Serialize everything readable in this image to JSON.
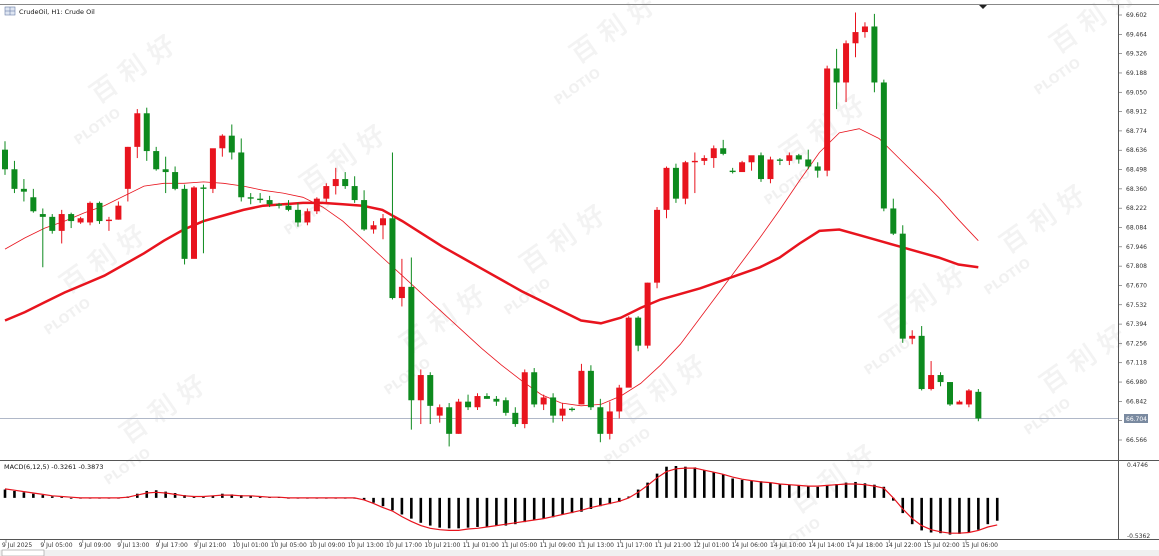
{
  "header": {
    "symbol_label": "CrudeOil, H1:  Crude Oil",
    "menu_icon": "grid-menu-icon"
  },
  "watermark": {
    "text": "百 利 好",
    "brand": "PLOTIO"
  },
  "colors": {
    "bull": "#e8141e",
    "bear": "#0d8a1e",
    "ma_fast": "#e8141e",
    "ma_slow": "#e8141e",
    "macd_hist": "#000000",
    "macd_signal": "#e8141e",
    "grid": "#c8c8c8",
    "price_line": "#b0b8c8",
    "price_tag": "#7a8aa0"
  },
  "price_axis": {
    "labels": [
      "69.602",
      "69.464",
      "69.326",
      "69.188",
      "69.050",
      "68.912",
      "68.774",
      "68.636",
      "68.498",
      "68.360",
      "68.222",
      "68.084",
      "67.946",
      "67.808",
      "67.670",
      "67.532",
      "67.394",
      "67.256",
      "67.118",
      "66.980",
      "66.842",
      "66.704",
      "66.566"
    ],
    "current_price": "66.704"
  },
  "macd": {
    "label": "MACD(6,12,5) -0.3261 -0.3873",
    "top_label": "0.4746",
    "bottom_label": "-0.5362"
  },
  "time_axis": {
    "labels": [
      "9 Jul 2025",
      "9 Jul 05:00",
      "9 Jul 09:00",
      "9 Jul 13:00",
      "9 Jul 17:00",
      "9 Jul 21:00",
      "10 Jul 01:00",
      "10 Jul 05:00",
      "10 Jul 09:00",
      "10 Jul 13:00",
      "10 Jul 17:00",
      "10 Jul 21:00",
      "11 Jul 01:00",
      "11 Jul 05:00",
      "11 Jul 09:00",
      "11 Jul 13:00",
      "11 Jul 17:00",
      "11 Jul 21:00",
      "12 Jul 01:00",
      "14 Jul 06:00",
      "14 Jul 10:00",
      "14 Jul 14:00",
      "14 Jul 18:00",
      "14 Jul 22:00",
      "15 Jul 02:00",
      "15 Jul 06:00"
    ]
  },
  "chart_data": {
    "type": "candlestick",
    "title": "CrudeOil, H1:  Crude Oil",
    "ylim": [
      66.5,
      69.65
    ],
    "candles": [
      {
        "o": 68.64,
        "h": 68.7,
        "l": 68.46,
        "c": 68.5
      },
      {
        "o": 68.5,
        "h": 68.56,
        "l": 68.33,
        "c": 68.36
      },
      {
        "o": 68.36,
        "h": 68.43,
        "l": 68.27,
        "c": 68.34
      },
      {
        "o": 68.3,
        "h": 68.36,
        "l": 68.19,
        "c": 68.2
      },
      {
        "o": 68.18,
        "h": 68.22,
        "l": 67.8,
        "c": 68.16
      },
      {
        "o": 68.16,
        "h": 68.18,
        "l": 68.04,
        "c": 68.06
      },
      {
        "o": 68.06,
        "h": 68.21,
        "l": 67.97,
        "c": 68.18
      },
      {
        "o": 68.18,
        "h": 68.19,
        "l": 68.08,
        "c": 68.13
      },
      {
        "o": 68.12,
        "h": 68.16,
        "l": 68.11,
        "c": 68.15
      },
      {
        "o": 68.12,
        "h": 68.27,
        "l": 68.1,
        "c": 68.26
      },
      {
        "o": 68.26,
        "h": 68.27,
        "l": 68.11,
        "c": 68.13
      },
      {
        "o": 68.13,
        "h": 68.16,
        "l": 68.06,
        "c": 68.14
      },
      {
        "o": 68.14,
        "h": 68.27,
        "l": 68.14,
        "c": 68.24
      },
      {
        "o": 68.36,
        "h": 68.66,
        "l": 68.27,
        "c": 68.66
      },
      {
        "o": 68.66,
        "h": 68.93,
        "l": 68.58,
        "c": 68.9
      },
      {
        "o": 68.9,
        "h": 68.94,
        "l": 68.56,
        "c": 68.63
      },
      {
        "o": 68.63,
        "h": 68.66,
        "l": 68.49,
        "c": 68.5
      },
      {
        "o": 68.5,
        "h": 68.59,
        "l": 68.33,
        "c": 68.48
      },
      {
        "o": 68.48,
        "h": 68.52,
        "l": 68.35,
        "c": 68.36
      },
      {
        "o": 68.36,
        "h": 68.39,
        "l": 67.82,
        "c": 67.86
      },
      {
        "o": 67.86,
        "h": 68.38,
        "l": 67.88,
        "c": 68.37
      },
      {
        "o": 68.37,
        "h": 68.39,
        "l": 67.9,
        "c": 68.36
      },
      {
        "o": 68.36,
        "h": 68.64,
        "l": 68.33,
        "c": 68.65
      },
      {
        "o": 68.65,
        "h": 68.75,
        "l": 68.59,
        "c": 68.74
      },
      {
        "o": 68.74,
        "h": 68.82,
        "l": 68.57,
        "c": 68.62
      },
      {
        "o": 68.62,
        "h": 68.72,
        "l": 68.27,
        "c": 68.3
      },
      {
        "o": 68.3,
        "h": 68.33,
        "l": 68.25,
        "c": 68.29
      },
      {
        "o": 68.29,
        "h": 68.33,
        "l": 68.26,
        "c": 68.28
      },
      {
        "o": 68.28,
        "h": 68.31,
        "l": 68.23,
        "c": 68.25
      },
      {
        "o": 68.25,
        "h": 68.26,
        "l": 68.22,
        "c": 68.24
      },
      {
        "o": 68.24,
        "h": 68.28,
        "l": 68.2,
        "c": 68.21
      },
      {
        "o": 68.21,
        "h": 68.26,
        "l": 68.09,
        "c": 68.12
      },
      {
        "o": 68.12,
        "h": 68.22,
        "l": 68.1,
        "c": 68.2
      },
      {
        "o": 68.2,
        "h": 68.3,
        "l": 68.18,
        "c": 68.29
      },
      {
        "o": 68.29,
        "h": 68.4,
        "l": 68.25,
        "c": 68.38
      },
      {
        "o": 68.38,
        "h": 68.51,
        "l": 68.32,
        "c": 68.43
      },
      {
        "o": 68.43,
        "h": 68.48,
        "l": 68.36,
        "c": 68.38
      },
      {
        "o": 68.38,
        "h": 68.45,
        "l": 68.26,
        "c": 68.28
      },
      {
        "o": 68.28,
        "h": 68.35,
        "l": 68.06,
        "c": 68.07
      },
      {
        "o": 68.07,
        "h": 68.13,
        "l": 68.04,
        "c": 68.1
      },
      {
        "o": 68.1,
        "h": 68.18,
        "l": 68.0,
        "c": 68.15
      },
      {
        "o": 68.15,
        "h": 68.62,
        "l": 67.57,
        "c": 67.58
      },
      {
        "o": 67.58,
        "h": 67.86,
        "l": 67.52,
        "c": 67.66
      },
      {
        "o": 67.66,
        "h": 67.87,
        "l": 66.64,
        "c": 66.85
      },
      {
        "o": 66.85,
        "h": 67.07,
        "l": 66.68,
        "c": 67.03
      },
      {
        "o": 67.03,
        "h": 67.05,
        "l": 66.68,
        "c": 66.81
      },
      {
        "o": 66.74,
        "h": 66.82,
        "l": 66.69,
        "c": 66.8
      },
      {
        "o": 66.8,
        "h": 66.83,
        "l": 66.52,
        "c": 66.61
      },
      {
        "o": 66.61,
        "h": 66.86,
        "l": 66.61,
        "c": 66.84
      },
      {
        "o": 66.84,
        "h": 66.89,
        "l": 66.78,
        "c": 66.8
      },
      {
        "o": 66.8,
        "h": 66.9,
        "l": 66.78,
        "c": 66.88
      },
      {
        "o": 66.88,
        "h": 66.9,
        "l": 66.86,
        "c": 66.86
      },
      {
        "o": 66.86,
        "h": 66.88,
        "l": 66.81,
        "c": 66.84
      },
      {
        "o": 66.85,
        "h": 66.87,
        "l": 66.74,
        "c": 66.76
      },
      {
        "o": 66.76,
        "h": 66.8,
        "l": 66.66,
        "c": 66.68
      },
      {
        "o": 66.68,
        "h": 67.07,
        "l": 66.65,
        "c": 67.05
      },
      {
        "o": 67.05,
        "h": 67.08,
        "l": 66.8,
        "c": 66.82
      },
      {
        "o": 66.82,
        "h": 66.89,
        "l": 66.78,
        "c": 66.87
      },
      {
        "o": 66.87,
        "h": 66.9,
        "l": 66.69,
        "c": 66.74
      },
      {
        "o": 66.74,
        "h": 66.83,
        "l": 66.7,
        "c": 66.79
      },
      {
        "o": 66.79,
        "h": 66.8,
        "l": 66.77,
        "c": 66.78
      },
      {
        "o": 66.82,
        "h": 67.11,
        "l": 66.82,
        "c": 67.06
      },
      {
        "o": 67.06,
        "h": 67.1,
        "l": 66.78,
        "c": 66.8
      },
      {
        "o": 66.8,
        "h": 66.86,
        "l": 66.55,
        "c": 66.61
      },
      {
        "o": 66.61,
        "h": 66.84,
        "l": 66.57,
        "c": 66.77
      },
      {
        "o": 66.77,
        "h": 66.96,
        "l": 66.72,
        "c": 66.94
      },
      {
        "o": 66.94,
        "h": 67.45,
        "l": 66.96,
        "c": 67.44
      },
      {
        "o": 67.44,
        "h": 67.45,
        "l": 67.2,
        "c": 67.24
      },
      {
        "o": 67.24,
        "h": 67.69,
        "l": 67.22,
        "c": 67.69
      },
      {
        "o": 67.69,
        "h": 68.23,
        "l": 67.65,
        "c": 68.21
      },
      {
        "o": 68.21,
        "h": 68.52,
        "l": 68.15,
        "c": 68.51
      },
      {
        "o": 68.51,
        "h": 68.54,
        "l": 68.26,
        "c": 68.29
      },
      {
        "o": 68.29,
        "h": 68.56,
        "l": 68.25,
        "c": 68.55
      },
      {
        "o": 68.55,
        "h": 68.62,
        "l": 68.33,
        "c": 68.56
      },
      {
        "o": 68.56,
        "h": 68.6,
        "l": 68.53,
        "c": 68.58
      },
      {
        "o": 68.58,
        "h": 68.67,
        "l": 68.51,
        "c": 68.65
      },
      {
        "o": 68.65,
        "h": 68.71,
        "l": 68.6,
        "c": 68.61
      },
      {
        "o": 68.49,
        "h": 68.51,
        "l": 68.47,
        "c": 68.48
      },
      {
        "o": 68.48,
        "h": 68.56,
        "l": 68.49,
        "c": 68.55
      },
      {
        "o": 68.55,
        "h": 68.57,
        "l": 68.49,
        "c": 68.6
      },
      {
        "o": 68.6,
        "h": 68.62,
        "l": 68.41,
        "c": 68.43
      },
      {
        "o": 68.43,
        "h": 68.59,
        "l": 68.4,
        "c": 68.57
      },
      {
        "o": 68.57,
        "h": 68.58,
        "l": 68.53,
        "c": 68.56
      },
      {
        "o": 68.56,
        "h": 68.62,
        "l": 68.53,
        "c": 68.6
      },
      {
        "o": 68.6,
        "h": 68.61,
        "l": 68.54,
        "c": 68.57
      },
      {
        "o": 68.57,
        "h": 68.64,
        "l": 68.5,
        "c": 68.52
      },
      {
        "o": 68.52,
        "h": 68.55,
        "l": 68.44,
        "c": 68.49
      },
      {
        "o": 68.49,
        "h": 69.24,
        "l": 68.45,
        "c": 69.22
      },
      {
        "o": 69.22,
        "h": 69.36,
        "l": 68.93,
        "c": 69.12
      },
      {
        "o": 69.12,
        "h": 69.42,
        "l": 68.98,
        "c": 69.4
      },
      {
        "o": 69.4,
        "h": 69.62,
        "l": 69.3,
        "c": 69.48
      },
      {
        "o": 69.48,
        "h": 69.55,
        "l": 69.44,
        "c": 69.52
      },
      {
        "o": 69.52,
        "h": 69.61,
        "l": 69.05,
        "c": 69.12
      },
      {
        "o": 69.12,
        "h": 69.14,
        "l": 68.2,
        "c": 68.22
      },
      {
        "o": 68.22,
        "h": 68.29,
        "l": 68.03,
        "c": 68.04
      },
      {
        "o": 68.04,
        "h": 68.1,
        "l": 67.26,
        "c": 67.29
      },
      {
        "o": 67.29,
        "h": 67.35,
        "l": 67.25,
        "c": 67.31
      },
      {
        "o": 67.31,
        "h": 67.38,
        "l": 66.92,
        "c": 66.93
      },
      {
        "o": 66.93,
        "h": 67.13,
        "l": 66.92,
        "c": 67.03
      },
      {
        "o": 67.03,
        "h": 67.05,
        "l": 66.95,
        "c": 66.98
      },
      {
        "o": 66.98,
        "h": 66.98,
        "l": 66.81,
        "c": 66.82
      },
      {
        "o": 66.82,
        "h": 66.85,
        "l": 66.82,
        "c": 66.84
      },
      {
        "o": 66.82,
        "h": 66.93,
        "l": 66.8,
        "c": 66.92
      },
      {
        "o": 66.91,
        "h": 66.93,
        "l": 66.7,
        "c": 66.72
      }
    ],
    "ma_fast": {
      "name": "",
      "y": [
        67.93,
        68.01,
        68.08,
        68.13,
        68.19,
        68.24,
        68.31,
        68.38,
        68.4,
        68.4,
        68.41,
        68.4,
        68.38,
        68.35,
        68.33,
        68.3,
        68.23,
        68.13,
        68.0,
        67.87,
        67.74,
        67.61,
        67.48,
        67.35,
        67.22,
        67.1,
        66.99,
        66.89,
        66.83,
        66.81,
        66.82,
        66.88,
        66.97,
        67.1,
        67.25,
        67.44,
        67.63,
        67.82,
        68.01,
        68.21,
        68.42,
        68.62,
        68.76,
        68.79,
        68.72,
        68.58,
        68.44,
        68.3,
        68.14,
        67.99
      ]
    },
    "ma_slow": {
      "name": "",
      "y": [
        67.42,
        67.48,
        67.55,
        67.62,
        67.68,
        67.74,
        67.82,
        67.9,
        67.99,
        68.07,
        68.13,
        68.17,
        68.21,
        68.24,
        68.25,
        68.26,
        68.26,
        68.25,
        68.24,
        68.21,
        68.13,
        68.04,
        67.95,
        67.87,
        67.79,
        67.71,
        67.63,
        67.56,
        67.49,
        67.42,
        67.4,
        67.44,
        67.51,
        67.57,
        67.61,
        67.65,
        67.7,
        67.75,
        67.8,
        67.87,
        67.97,
        68.06,
        68.07,
        68.03,
        67.99,
        67.95,
        67.91,
        67.87,
        67.82,
        67.8
      ]
    },
    "macd_hist": [
      0.12,
      0.1,
      0.08,
      0.06,
      0.04,
      0.02,
      0.01,
      0.0,
      0.0,
      0.0,
      0.0,
      0.0,
      0.0,
      0.02,
      0.06,
      0.1,
      0.11,
      0.09,
      0.07,
      0.04,
      0.02,
      0.01,
      0.03,
      0.06,
      0.05,
      0.04,
      0.03,
      0.02,
      0.01,
      0.01,
      0.0,
      0.0,
      0.0,
      0.0,
      0.0,
      0.0,
      0.0,
      0.0,
      -0.03,
      -0.07,
      -0.12,
      -0.18,
      -0.24,
      -0.3,
      -0.36,
      -0.4,
      -0.43,
      -0.44,
      -0.44,
      -0.43,
      -0.42,
      -0.42,
      -0.4,
      -0.4,
      -0.38,
      -0.35,
      -0.32,
      -0.3,
      -0.28,
      -0.24,
      -0.22,
      -0.2,
      -0.16,
      -0.12,
      -0.09,
      -0.06,
      0.02,
      0.12,
      0.22,
      0.35,
      0.45,
      0.46,
      0.45,
      0.44,
      0.4,
      0.37,
      0.34,
      0.28,
      0.26,
      0.25,
      0.24,
      0.22,
      0.2,
      0.19,
      0.18,
      0.17,
      0.16,
      0.18,
      0.2,
      0.22,
      0.23,
      0.21,
      0.19,
      0.16,
      -0.04,
      -0.22,
      -0.38,
      -0.47,
      -0.5,
      -0.51,
      -0.53,
      -0.52,
      -0.5,
      -0.46,
      -0.38,
      -0.33
    ],
    "macd_signal": [
      0.13,
      0.11,
      0.09,
      0.07,
      0.05,
      0.03,
      0.02,
      0.01,
      0.0,
      0.0,
      0.0,
      0.0,
      0.0,
      0.01,
      0.04,
      0.07,
      0.08,
      0.07,
      0.05,
      0.03,
      0.02,
      0.02,
      0.03,
      0.04,
      0.04,
      0.03,
      0.03,
      0.02,
      0.01,
      0.01,
      0.0,
      0.0,
      0.0,
      0.0,
      0.0,
      0.0,
      0.0,
      0.0,
      -0.03,
      -0.08,
      -0.14,
      -0.19,
      -0.27,
      -0.34,
      -0.4,
      -0.44,
      -0.46,
      -0.47,
      -0.47,
      -0.45,
      -0.44,
      -0.42,
      -0.4,
      -0.38,
      -0.36,
      -0.34,
      -0.32,
      -0.3,
      -0.27,
      -0.24,
      -0.21,
      -0.18,
      -0.14,
      -0.11,
      -0.08,
      -0.05,
      0.0,
      0.08,
      0.18,
      0.29,
      0.38,
      0.42,
      0.43,
      0.43,
      0.4,
      0.37,
      0.34,
      0.3,
      0.27,
      0.25,
      0.23,
      0.22,
      0.2,
      0.19,
      0.18,
      0.17,
      0.17,
      0.18,
      0.19,
      0.2,
      0.2,
      0.19,
      0.17,
      0.14,
      0.0,
      -0.16,
      -0.3,
      -0.4,
      -0.46,
      -0.49,
      -0.51,
      -0.51,
      -0.5,
      -0.47,
      -0.42,
      -0.39
    ]
  }
}
